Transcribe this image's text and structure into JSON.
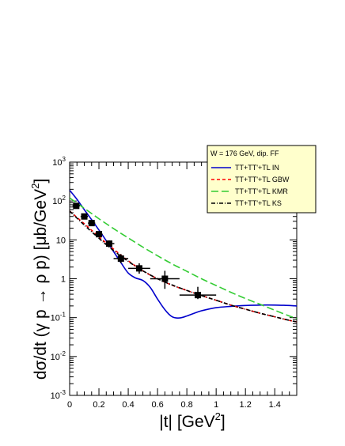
{
  "chart_data": {
    "type": "line",
    "xlabel_base": "|t| [GeV",
    "xlabel_sup": "2",
    "xlabel_end": "]",
    "ylabel_base": "dσ/dt (γ p → ρ p) [μb/GeV",
    "ylabel_sup": "2",
    "ylabel_end": "]",
    "xlim": [
      0,
      1.55
    ],
    "ylim": [
      0.001,
      1000
    ],
    "y_scale": "log",
    "x_ticks": [
      {
        "value": 0,
        "label": "0"
      },
      {
        "value": 0.2,
        "label": "0.2"
      },
      {
        "value": 0.4,
        "label": "0.4"
      },
      {
        "value": 0.6,
        "label": "0.6"
      },
      {
        "value": 0.8,
        "label": "0.8"
      },
      {
        "value": 1.0,
        "label": "1"
      },
      {
        "value": 1.2,
        "label": "1.2"
      },
      {
        "value": 1.4,
        "label": "1.4"
      }
    ],
    "y_ticks": [
      {
        "value": 0.001,
        "base": "10",
        "exp": "-3"
      },
      {
        "value": 0.01,
        "base": "10",
        "exp": "-2"
      },
      {
        "value": 0.1,
        "base": "10",
        "exp": "-1"
      },
      {
        "value": 1,
        "base": "1",
        "exp": ""
      },
      {
        "value": 10,
        "base": "10",
        "exp": ""
      },
      {
        "value": 100,
        "base": "10",
        "exp": "2"
      },
      {
        "value": 1000,
        "base": "10",
        "exp": "3"
      }
    ],
    "legend": {
      "header": "W = 176 GeV, dip. FF",
      "placement": "top-right"
    },
    "series": [
      {
        "name": "TT+TT'+TL IN",
        "color": "#0000cc",
        "dash": "solid",
        "x": [
          0.0,
          0.05,
          0.1,
          0.15,
          0.2,
          0.25,
          0.3,
          0.35,
          0.4,
          0.45,
          0.5,
          0.55,
          0.6,
          0.65,
          0.7,
          0.75,
          0.8,
          0.85,
          0.9,
          1.0,
          1.1,
          1.2,
          1.3,
          1.4,
          1.5,
          1.55
        ],
        "y": [
          190,
          110,
          60,
          33,
          18,
          9.5,
          5.0,
          2.6,
          1.4,
          1.05,
          0.9,
          0.6,
          0.3,
          0.16,
          0.105,
          0.098,
          0.11,
          0.13,
          0.15,
          0.18,
          0.195,
          0.205,
          0.21,
          0.21,
          0.205,
          0.2
        ]
      },
      {
        "name": "TT+TT'+TL GBW",
        "color": "#ff0000",
        "dash": "short",
        "x": [
          0.0,
          0.1,
          0.2,
          0.3,
          0.4,
          0.5,
          0.6,
          0.7,
          0.8,
          0.9,
          1.0,
          1.1,
          1.2,
          1.3,
          1.4,
          1.5,
          1.55
        ],
        "y": [
          55,
          26,
          12,
          5.8,
          2.9,
          1.6,
          1.0,
          0.68,
          0.5,
          0.37,
          0.28,
          0.21,
          0.165,
          0.13,
          0.105,
          0.085,
          0.078
        ]
      },
      {
        "name": "TT+TT'+TL KMR",
        "color": "#33cc33",
        "dash": "long",
        "x": [
          0.0,
          0.1,
          0.2,
          0.3,
          0.4,
          0.5,
          0.6,
          0.7,
          0.8,
          0.9,
          1.0,
          1.1,
          1.2,
          1.3,
          1.4,
          1.5,
          1.55
        ],
        "y": [
          120,
          65,
          35,
          19.5,
          11.2,
          6.5,
          3.9,
          2.4,
          1.55,
          1.0,
          0.67,
          0.45,
          0.31,
          0.22,
          0.155,
          0.11,
          0.095
        ]
      },
      {
        "name": "TT+TT'+TL KS",
        "color": "#000000",
        "dash": "dashdot",
        "x": [
          0.0,
          0.1,
          0.2,
          0.3,
          0.4,
          0.5,
          0.6,
          0.7,
          0.8,
          0.9,
          1.0,
          1.1,
          1.2,
          1.3,
          1.4,
          1.5,
          1.55
        ],
        "y": [
          55,
          24,
          11,
          5.3,
          2.8,
          1.6,
          1.0,
          0.69,
          0.5,
          0.37,
          0.28,
          0.21,
          0.165,
          0.13,
          0.105,
          0.085,
          0.078
        ]
      }
    ],
    "measurements": {
      "x": [
        0.045,
        0.1,
        0.15,
        0.2,
        0.27,
        0.35,
        0.475,
        0.65,
        0.875
      ],
      "y": [
        75,
        40,
        27,
        14,
        8,
        3.3,
        1.85,
        1.0,
        0.38
      ],
      "xerr": [
        0.025,
        0.025,
        0.025,
        0.025,
        0.035,
        0.05,
        0.075,
        0.1,
        0.125
      ],
      "yerr_low": [
        65,
        34,
        23,
        11.5,
        6.5,
        2.5,
        1.35,
        0.55,
        0.3
      ],
      "yerr_high": [
        87,
        47,
        32,
        16.5,
        9.7,
        4.3,
        2.5,
        1.6,
        0.62
      ]
    }
  }
}
